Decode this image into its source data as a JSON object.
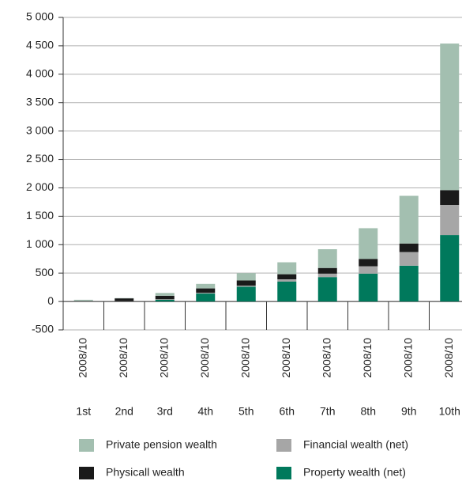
{
  "chart_data": {
    "type": "bar",
    "stacked": true,
    "period": "2008/10",
    "categories": [
      "1st",
      "2nd",
      "3rd",
      "4th",
      "5th",
      "6th",
      "7th",
      "8th",
      "9th",
      "10th"
    ],
    "series": [
      {
        "name": "Property wealth (net)",
        "color": "#00795c",
        "values": [
          0,
          0,
          30,
          140,
          260,
          350,
          430,
          490,
          630,
          1170
        ]
      },
      {
        "name": "Financial wealth (net)",
        "color": "#a6a6a6",
        "values": [
          5,
          5,
          10,
          15,
          20,
          40,
          60,
          130,
          240,
          530
        ]
      },
      {
        "name": "Physicall wealth",
        "color": "#1a1a1a",
        "values": [
          5,
          50,
          60,
          75,
          90,
          90,
          100,
          130,
          150,
          260
        ]
      },
      {
        "name": "Private pension wealth",
        "color": "#a3bfb0",
        "values": [
          20,
          5,
          50,
          80,
          130,
          210,
          330,
          540,
          840,
          2580
        ]
      }
    ],
    "ylim": [
      -500,
      5000
    ],
    "yticks": [
      -500,
      0,
      500,
      {
        "value": 1000,
        "label": "1 000"
      },
      {
        "value": 1500,
        "label": "1 500"
      },
      {
        "value": 2000,
        "label": "2 000"
      },
      {
        "value": 2500,
        "label": "2 500"
      },
      {
        "value": 3000,
        "label": "3 000"
      },
      {
        "value": 3500,
        "label": "3 500"
      },
      {
        "value": 4000,
        "label": "4 000"
      },
      {
        "value": 4500,
        "label": "4 500"
      },
      {
        "value": 5000,
        "label": "5 000"
      }
    ],
    "grid": true
  }
}
